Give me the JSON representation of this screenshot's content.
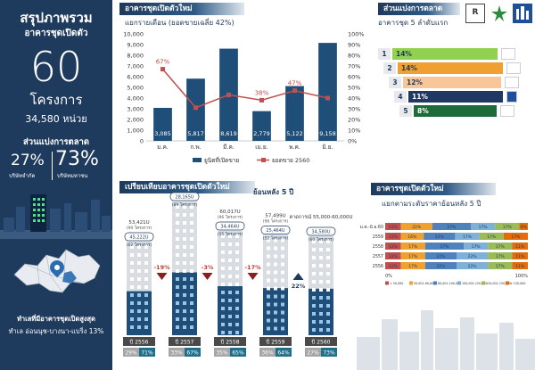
{
  "summary": {
    "title": "สรุปภาพรวม",
    "subtitle": "อาคารชุดเปิดตัว",
    "projects_value": "60",
    "projects_label": "โครงการ",
    "units_label": "34,580 หน่วย",
    "share_heading": "ส่วนแบ่งการตลาด",
    "share_listed": "27%",
    "share_listed_label": "บริษัทจำกัด",
    "share_public": "73%",
    "share_public_label": "บริษัทมหาชน",
    "top_location_heading": "ทำเลที่มีอาคารชุดเปิดสูงสุด",
    "top_location_text": "ทำเล อ่อนนุช-บางนา-แบริ่ง 13%"
  },
  "colors": {
    "navy": "#1e3a5c",
    "bar": "#1f4e79",
    "line": "#c0504d",
    "grey": "#7f7f7f"
  },
  "logos": [
    "logo-a",
    "logo-b",
    "logo-c"
  ],
  "chart_data": [
    {
      "type": "bar+line",
      "title": "อาคารชุดเปิดตัวใหม่",
      "subtitle": "แยกรายเดือน (ยอดขายเฉลี่ย 42%)",
      "categories": [
        "ม.ค.",
        "ก.พ.",
        "มี.ค.",
        "เม.ย.",
        "พ.ค.",
        "มิ.ย."
      ],
      "bar_series": {
        "name": "ยูนิตที่เปิดขาย",
        "values": [
          3085,
          5817,
          8619,
          2779,
          5122,
          9158
        ]
      },
      "line_series": {
        "name": "ยอดขาย 2560",
        "values": [
          67,
          31,
          43,
          38,
          47,
          40
        ],
        "labeled": [
          67,
          null,
          null,
          38,
          47,
          null
        ]
      },
      "ylim_left": [
        0,
        10000
      ],
      "left_ticks": [
        "0",
        "1,000",
        "2,000",
        "3,000",
        "4,000",
        "5,000",
        "6,000",
        "7,000",
        "8,000",
        "9,000",
        "10,000"
      ],
      "ylim_right": [
        0,
        100
      ],
      "right_ticks": [
        "0%",
        "10%",
        "20%",
        "30%",
        "40%",
        "50%",
        "60%",
        "70%",
        "80%",
        "90%",
        "100%"
      ]
    },
    {
      "type": "bar",
      "title": "ส่วนแบ่งการตลาด",
      "subtitle": "อาคารชุด 5 ลำดับแรก",
      "ranks": [
        "1",
        "2",
        "3",
        "4",
        "5"
      ],
      "values": [
        14,
        14,
        12,
        11,
        8
      ],
      "labels": [
        "14%",
        "14%",
        "12%",
        "11%",
        "8%"
      ],
      "colors": [
        "#92d050",
        "#f0a030",
        "#f7c79a",
        "#1f3864",
        "#1e6b3a"
      ]
    },
    {
      "type": "bar",
      "title": "เปรียบเทียบอาคารชุดเปิดตัวใหม่",
      "subtitle": "ย้อนหลัง 5 ปี",
      "years": [
        "ปี 2556",
        "ปี 2557",
        "ปี 2558",
        "ปี 2559",
        "ปี 2560"
      ],
      "units": [
        "53,421U",
        "76,696U",
        "60,017U",
        "57,499U",
        "คาดการณ์ 55,000-60,000U"
      ],
      "first_half_units": [
        "45,222U",
        "28,165U",
        "34,464U",
        "25,464U",
        "34,580U"
      ],
      "first_half_projects": [
        "(62 โครงการ)",
        "(89 โครงการ)",
        "(55 โครงการ)",
        "(52 โครงการ)",
        "(60 โครงการ)"
      ],
      "sub_projects": [
        "(99 โครงการ)",
        "(154 โครงการ)",
        "(96 โครงการ)",
        "(96 โครงการ)",
        ""
      ],
      "changes": [
        "-19%",
        "-3%",
        "-17%",
        "22%"
      ],
      "change_direction": [
        "down",
        "down",
        "down",
        "up"
      ],
      "share_ltd": [
        "29%",
        "33%",
        "35%",
        "36%",
        "27%"
      ],
      "share_public": [
        "71%",
        "67%",
        "65%",
        "64%",
        "73%"
      ],
      "relative_heights": [
        0.7,
        1.0,
        0.78,
        0.75,
        0.74
      ]
    },
    {
      "type": "stacked-bar",
      "title": "อาคารชุดเปิดตัวใหม่",
      "subtitle": "แยกตามระดับราคาย้อนหลัง 5 ปี",
      "years": [
        "ม.ค.-มิ.ย.60",
        "2559",
        "2558",
        "2557",
        "2556"
      ],
      "segment_colors": [
        "#c0504d",
        "#f0a030",
        "#4f81bd",
        "#7fb0d8",
        "#9bbb59",
        "#e46c0a"
      ],
      "legend": [
        "< 50,000",
        "50,001-80,000",
        "80,001-100,000",
        "100,001-120,000",
        "120,001-150,000",
        "> 150,000"
      ],
      "rows": [
        [
          11,
          22,
          27,
          17,
          17,
          6
        ],
        [
          11,
          16,
          22,
          17,
          17,
          17
        ],
        [
          11,
          17,
          27,
          17,
          17,
          11
        ],
        [
          11,
          17,
          22,
          22,
          17,
          11
        ],
        [
          11,
          17,
          22,
          22,
          17,
          11
        ]
      ],
      "axis_start": "0%",
      "axis_end": "100%"
    }
  ]
}
